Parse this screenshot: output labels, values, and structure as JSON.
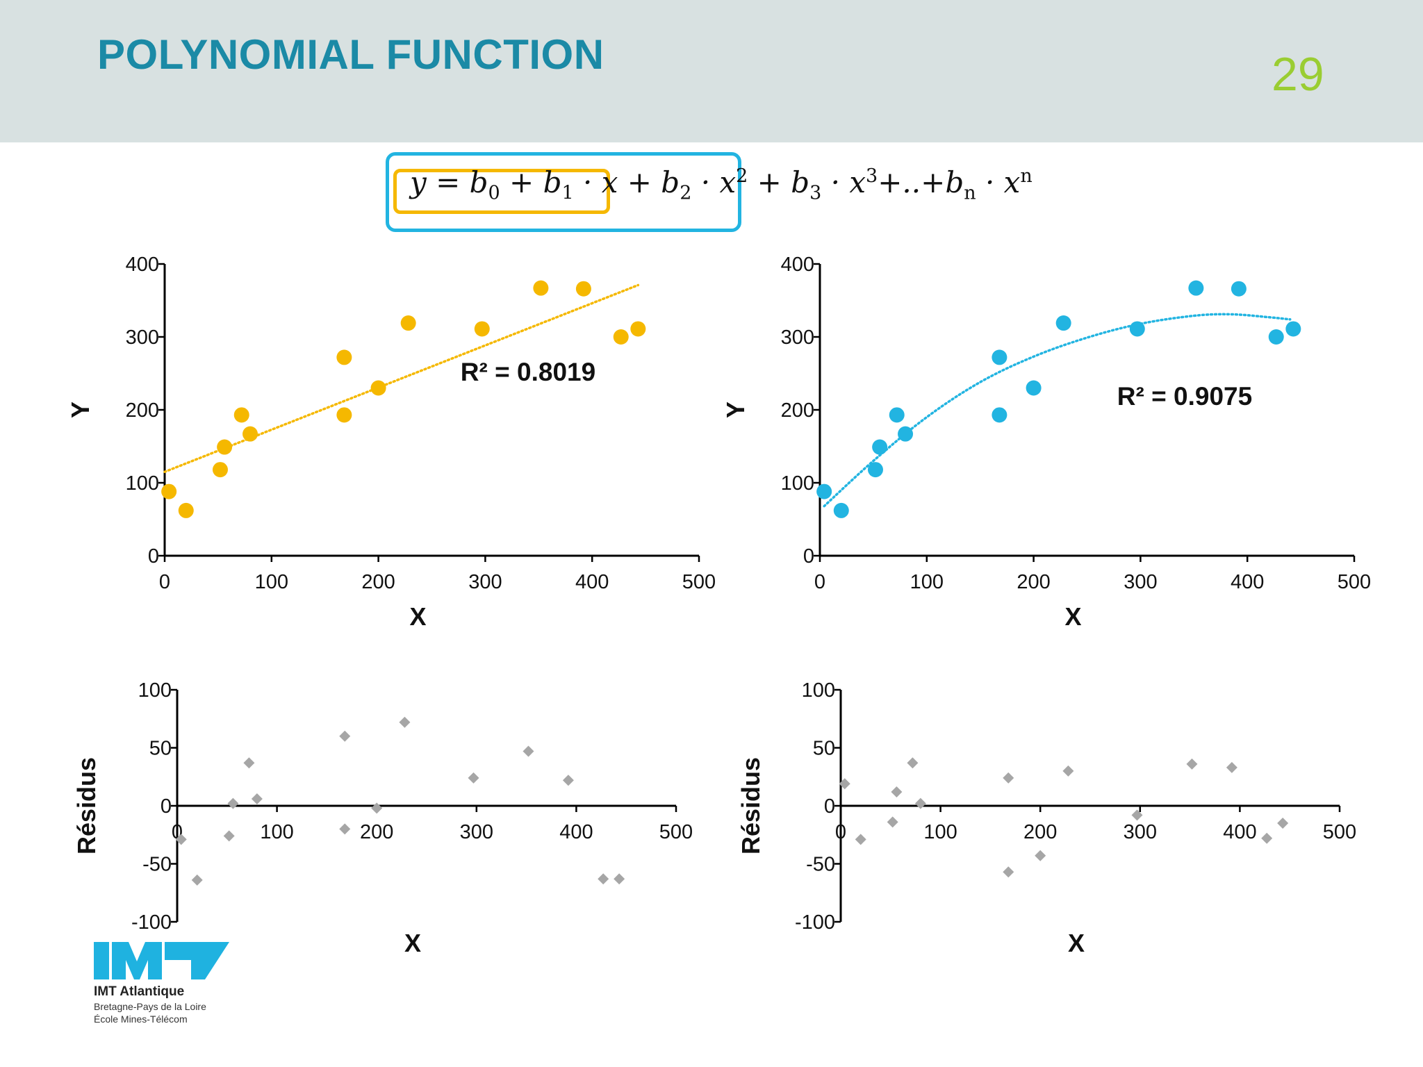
{
  "slide": {
    "title": "POLYNOMIAL FUNCTION",
    "page_number": "29",
    "colors": {
      "header_bg": "#d8e1e1",
      "title": "#1b8aa6",
      "page_number": "#9acd32",
      "linear": "#f5b800",
      "quadratic": "#22b4e1",
      "residual": "#a6a6a6"
    }
  },
  "formula": {
    "terms": [
      {
        "base": "y = b",
        "sub": "0"
      },
      {
        "base": " + b",
        "sub": "1"
      },
      {
        "base": " · x + b",
        "sub": "2"
      },
      {
        "base": " · x",
        "sup": "2"
      },
      {
        "base": " + b",
        "sub": "3"
      },
      {
        "base": " · x",
        "sup": "3"
      },
      {
        "base": "+..+b",
        "sub": "n"
      },
      {
        "base": " · x",
        "sup": "n"
      }
    ]
  },
  "logo": {
    "name": "IMT Atlantique",
    "line1": "Bretagne-Pays de la Loire",
    "line2": "École Mines-Télécom"
  },
  "chart_data": [
    {
      "type": "scatter",
      "xlabel": "X",
      "ylabel": "Y",
      "xlim": [
        0,
        500
      ],
      "ylim": [
        0,
        400
      ],
      "xticks": [
        0,
        100,
        200,
        300,
        400,
        500
      ],
      "yticks": [
        0,
        100,
        200,
        300,
        400
      ],
      "color": "#f5b800",
      "annotation": "R² = 0.8019",
      "trendline": {
        "type": "linear",
        "x_range": [
          0,
          443
        ],
        "y_start": 115,
        "y_end": 371
      },
      "points": [
        [
          4,
          88
        ],
        [
          20,
          62
        ],
        [
          52,
          118
        ],
        [
          56,
          149
        ],
        [
          72,
          193
        ],
        [
          80,
          167
        ],
        [
          168,
          272
        ],
        [
          168,
          193
        ],
        [
          200,
          230
        ],
        [
          228,
          319
        ],
        [
          297,
          311
        ],
        [
          352,
          367
        ],
        [
          392,
          366
        ],
        [
          427,
          300
        ],
        [
          443,
          311
        ]
      ]
    },
    {
      "type": "scatter",
      "xlabel": "X",
      "ylabel": "Y",
      "xlim": [
        0,
        500
      ],
      "ylim": [
        0,
        400
      ],
      "xticks": [
        0,
        100,
        200,
        300,
        400,
        500
      ],
      "yticks": [
        0,
        100,
        200,
        300,
        400
      ],
      "color": "#22b4e1",
      "annotation": "R² = 0.9075",
      "trendline": {
        "type": "polynomial",
        "x_range": [
          4,
          440
        ],
        "curve": [
          [
            4,
            68
          ],
          [
            50,
            130
          ],
          [
            100,
            190
          ],
          [
            150,
            238
          ],
          [
            200,
            273
          ],
          [
            250,
            299
          ],
          [
            300,
            318
          ],
          [
            350,
            329
          ],
          [
            385,
            331
          ],
          [
            420,
            327
          ],
          [
            440,
            324
          ]
        ]
      },
      "points": [
        [
          4,
          88
        ],
        [
          20,
          62
        ],
        [
          52,
          118
        ],
        [
          56,
          149
        ],
        [
          72,
          193
        ],
        [
          80,
          167
        ],
        [
          168,
          272
        ],
        [
          168,
          193
        ],
        [
          200,
          230
        ],
        [
          228,
          319
        ],
        [
          297,
          311
        ],
        [
          352,
          367
        ],
        [
          392,
          366
        ],
        [
          427,
          300
        ],
        [
          443,
          311
        ]
      ]
    },
    {
      "type": "scatter",
      "xlabel": "X",
      "ylabel": "Résidus",
      "xlim": [
        0,
        500
      ],
      "ylim": [
        -100,
        100
      ],
      "xticks": [
        0,
        100,
        200,
        300,
        400,
        500
      ],
      "yticks": [
        -100,
        -50,
        0,
        50,
        100
      ],
      "color": "#a6a6a6",
      "marker": "diamond",
      "points": [
        [
          4,
          -29
        ],
        [
          20,
          -64
        ],
        [
          52,
          -26
        ],
        [
          56,
          2
        ],
        [
          72,
          37
        ],
        [
          80,
          6
        ],
        [
          168,
          60
        ],
        [
          168,
          -20
        ],
        [
          200,
          -2
        ],
        [
          228,
          72
        ],
        [
          297,
          24
        ],
        [
          352,
          47
        ],
        [
          392,
          22
        ],
        [
          427,
          -63
        ],
        [
          443,
          -63
        ]
      ]
    },
    {
      "type": "scatter",
      "xlabel": "X",
      "ylabel": "Résidus",
      "xlim": [
        0,
        500
      ],
      "ylim": [
        -100,
        100
      ],
      "xticks": [
        0,
        100,
        200,
        300,
        400,
        500
      ],
      "yticks": [
        -100,
        -50,
        0,
        50,
        100
      ],
      "color": "#a6a6a6",
      "marker": "diamond",
      "points": [
        [
          4,
          19
        ],
        [
          20,
          -29
        ],
        [
          52,
          -14
        ],
        [
          56,
          12
        ],
        [
          72,
          37
        ],
        [
          80,
          2
        ],
        [
          168,
          24
        ],
        [
          168,
          -57
        ],
        [
          200,
          -43
        ],
        [
          228,
          30
        ],
        [
          297,
          -8
        ],
        [
          352,
          36
        ],
        [
          392,
          33
        ],
        [
          427,
          -28
        ],
        [
          443,
          -15
        ]
      ]
    }
  ]
}
